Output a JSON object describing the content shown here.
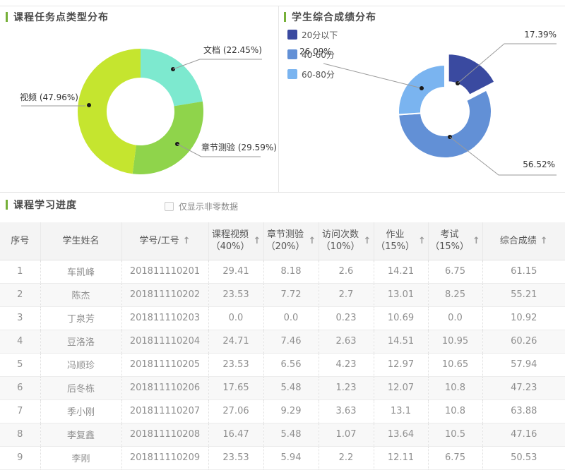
{
  "theme": {
    "accent_green": "#76b039",
    "panel_border": "#e6e6e6"
  },
  "charts": {
    "task_type": {
      "title": "课程任务点类型分布",
      "labels": {
        "doc": "文档 (22.45%)",
        "video": "视频 (47.96%)",
        "quiz": "章节测验 (29.59%)"
      }
    },
    "score_dist": {
      "title": "学生综合成绩分布",
      "labels": {
        "below20": "17.39%",
        "s40_60": "56.52%",
        "s60_80": "26.09%"
      }
    }
  },
  "chart_data": [
    {
      "type": "pie",
      "variant": "donut",
      "title": "课程任务点类型分布",
      "unit": "%",
      "start_angle": "top",
      "direction": "clockwise",
      "slices": [
        {
          "label": "文档",
          "value": 22.45,
          "color": "#7de9cf"
        },
        {
          "label": "章节测验",
          "value": 29.59,
          "color": "#8fd44b"
        },
        {
          "label": "视频",
          "value": 47.96,
          "color": "#c5e52f"
        }
      ]
    },
    {
      "type": "pie",
      "variant": "donut",
      "title": "学生综合成绩分布",
      "unit": "%",
      "start_angle": "top",
      "direction": "clockwise",
      "legend_position": "top-left",
      "slices": [
        {
          "label": "20分以下",
          "value": 17.39,
          "color": "#3a4aa0",
          "exploded": true
        },
        {
          "label": "40-60分",
          "value": 56.52,
          "color": "#6290d6"
        },
        {
          "label": "60-80分",
          "value": 26.09,
          "color": "#7ab4f0"
        }
      ]
    }
  ],
  "progress": {
    "title": "课程学习进度",
    "filter_label": "仅显示非零数据",
    "sort_icon": "↑",
    "columns": [
      {
        "key": "no",
        "label": "序号",
        "sub": "",
        "sortable": false
      },
      {
        "key": "name",
        "label": "学生姓名",
        "sub": "",
        "sortable": false
      },
      {
        "key": "id",
        "label": "学号/工号",
        "sub": "",
        "sortable": true
      },
      {
        "key": "video",
        "label": "课程视频",
        "sub": "（40%）",
        "sortable": true
      },
      {
        "key": "quiz",
        "label": "章节测验",
        "sub": "（20%）",
        "sortable": true
      },
      {
        "key": "visits",
        "label": "访问次数",
        "sub": "（10%）",
        "sortable": true
      },
      {
        "key": "homework",
        "label": "作业",
        "sub": "（15%）",
        "sortable": true
      },
      {
        "key": "exam",
        "label": "考试",
        "sub": "（15%）",
        "sortable": true
      },
      {
        "key": "total",
        "label": "综合成绩",
        "sub": "",
        "sortable": true
      }
    ],
    "rows": [
      [
        "1",
        "车凯峰",
        "201811110201",
        "29.41",
        "8.18",
        "2.6",
        "14.21",
        "6.75",
        "61.15"
      ],
      [
        "2",
        "陈杰",
        "201811110202",
        "23.53",
        "7.72",
        "2.7",
        "13.01",
        "8.25",
        "55.21"
      ],
      [
        "3",
        "丁泉芳",
        "201811110203",
        "0.0",
        "0.0",
        "0.23",
        "10.69",
        "0.0",
        "10.92"
      ],
      [
        "4",
        "豆洛洛",
        "201811110204",
        "24.71",
        "7.46",
        "2.63",
        "14.51",
        "10.95",
        "60.26"
      ],
      [
        "5",
        "冯顺珍",
        "201811110205",
        "23.53",
        "6.56",
        "4.23",
        "12.97",
        "10.65",
        "57.94"
      ],
      [
        "6",
        "后冬栋",
        "201811110206",
        "17.65",
        "5.48",
        "1.23",
        "12.07",
        "10.8",
        "47.23"
      ],
      [
        "7",
        "季小刚",
        "201811110207",
        "27.06",
        "9.29",
        "3.63",
        "13.1",
        "10.8",
        "63.88"
      ],
      [
        "8",
        "李复鑫",
        "201811110208",
        "16.47",
        "5.48",
        "1.07",
        "13.64",
        "10.5",
        "47.16"
      ],
      [
        "9",
        "李刚",
        "201811110209",
        "23.53",
        "5.94",
        "2.2",
        "12.11",
        "6.75",
        "50.53"
      ]
    ]
  }
}
